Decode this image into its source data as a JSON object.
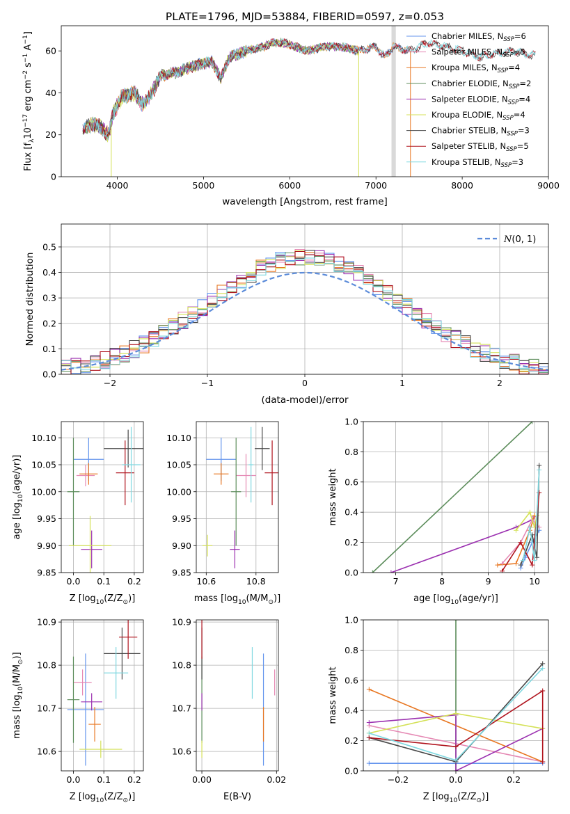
{
  "figure_title": "PLATE=1796, MJD=53884, FIBERID=0597, z=0.053",
  "colors": {
    "Chabrier MILES": "#6495ED",
    "Salpeter MILES": "#E589B4",
    "Kroupa MILES": "#E87722",
    "Chabrier ELODIE": "#5B8C5A",
    "Salpeter ELODIE": "#9B30B0",
    "Kroupa ELODIE": "#D4E157",
    "Chabrier STELIB": "#474747",
    "Salpeter STELIB": "#B0141E",
    "Kroupa STELIB": "#7FD8E0"
  },
  "chart_data": [
    {
      "id": "spectrum",
      "type": "line",
      "ylabel": "Flux [f$_\\lambda$10$^{-17}$ erg cm$^{-2}$ s$^{-1}$ A$^{-1}$]",
      "ylabel_parts": [
        "Flux [f",
        "λ",
        "10",
        "−17",
        " erg cm",
        "−2",
        " s",
        "−1",
        " A",
        "−1",
        "]"
      ],
      "xlabel": "wavelength [Angstrom, rest frame]",
      "xlim": [
        3350,
        9000
      ],
      "ylim": [
        0,
        72
      ],
      "xticks": [
        4000,
        5000,
        6000,
        7000,
        8000,
        9000
      ],
      "yticks": [
        0,
        20,
        40,
        60
      ],
      "legend": [
        {
          "model": "Chabrier MILES",
          "n": "6"
        },
        {
          "model": "Salpeter MILES",
          "n": "5"
        },
        {
          "model": "Kroupa MILES",
          "n": "4"
        },
        {
          "model": "Chabrier ELODIE",
          "n": "2"
        },
        {
          "model": "Salpeter ELODIE",
          "n": "4"
        },
        {
          "model": "Kroupa ELODIE",
          "n": "4"
        },
        {
          "model": "Chabrier STELIB",
          "n": "3"
        },
        {
          "model": "Salpeter STELIB",
          "n": "5"
        },
        {
          "model": "Kroupa STELIB",
          "n": "3"
        }
      ],
      "legend_prefix": "N",
      "legend_sub": "SSP",
      "legend_position": "right",
      "continuum": [
        [
          3600,
          22
        ],
        [
          3700,
          25
        ],
        [
          3800,
          24
        ],
        [
          3900,
          20
        ],
        [
          3950,
          30
        ],
        [
          4050,
          38
        ],
        [
          4200,
          40
        ],
        [
          4300,
          34
        ],
        [
          4400,
          40
        ],
        [
          4500,
          48
        ],
        [
          4700,
          50
        ],
        [
          4900,
          53
        ],
        [
          5100,
          55
        ],
        [
          5200,
          47
        ],
        [
          5300,
          57
        ],
        [
          5500,
          60
        ],
        [
          5700,
          62
        ],
        [
          5800,
          64
        ],
        [
          5900,
          64
        ],
        [
          6000,
          63
        ],
        [
          6200,
          60
        ],
        [
          6400,
          62
        ],
        [
          6600,
          62
        ],
        [
          6800,
          60
        ],
        [
          7000,
          62
        ],
        [
          7100,
          57
        ],
        [
          7200,
          62
        ],
        [
          7400,
          60
        ],
        [
          7600,
          64
        ],
        [
          7800,
          62
        ],
        [
          8000,
          60
        ],
        [
          8200,
          57
        ],
        [
          8400,
          59
        ],
        [
          8600,
          60
        ],
        [
          8800,
          58
        ]
      ],
      "series_ranges": {
        "Chabrier MILES": [
          3600,
          7400
        ],
        "Salpeter MILES": [
          3600,
          7400
        ],
        "Kroupa MILES": [
          3600,
          7400
        ],
        "Chabrier ELODIE": [
          3600,
          6800
        ],
        "Salpeter ELODIE": [
          3600,
          6800
        ],
        "Kroupa ELODIE": [
          3600,
          6800
        ],
        "Chabrier STELIB": [
          3600,
          8850
        ],
        "Salpeter STELIB": [
          3600,
          8850
        ],
        "Kroupa STELIB": [
          3600,
          8850
        ]
      },
      "drops": [
        {
          "x": 3930,
          "model": "Kroupa ELODIE"
        },
        {
          "x": 6800,
          "model": "Kroupa ELODIE"
        },
        {
          "x": 7400,
          "model": "Kroupa MILES"
        }
      ],
      "masked_band": [
        7180,
        7230
      ]
    },
    {
      "id": "residuals",
      "type": "step",
      "xlabel": "(data-model)/error",
      "ylabel": "Normed distribution",
      "xlim": [
        -2.5,
        2.5
      ],
      "ylim": [
        0,
        0.59
      ],
      "xticks": [
        -2,
        -1,
        0,
        1,
        2
      ],
      "yticks": [
        0.0,
        0.1,
        0.2,
        0.3,
        0.4,
        0.5
      ],
      "grid": true,
      "legend": [
        {
          "label_prefix": "N",
          "label_args": "(0, 1)",
          "color": "#5B8BD9"
        }
      ],
      "legend_position": "top-right",
      "normal_curve": {
        "mu": 0,
        "sigma": 1
      },
      "bin_width": 0.1
    },
    {
      "id": "age_vs_Z",
      "type": "scatter",
      "xlabel_parts": [
        "Z [log",
        "10",
        "(Z/Z",
        "⊙",
        ")]"
      ],
      "ylabel_parts": [
        "age  [log",
        "10",
        "(age/yr)]"
      ],
      "xlim": [
        -0.04,
        0.23
      ],
      "ylim": [
        9.85,
        10.13
      ],
      "xticks": [
        0.0,
        0.1,
        0.2
      ],
      "yticks": [
        9.85,
        9.9,
        9.95,
        10.0,
        10.05,
        10.1
      ],
      "grid": true,
      "points": [
        {
          "model": "Chabrier MILES",
          "x": 0.05,
          "y": 10.06,
          "xerr": 0.05,
          "yerr": 0.04
        },
        {
          "model": "Salpeter MILES",
          "x": 0.04,
          "y": 10.03,
          "xerr": 0.03,
          "yerr": 0.02
        },
        {
          "model": "Kroupa MILES",
          "x": 0.05,
          "y": 10.033,
          "xerr": 0.03,
          "yerr": 0.02
        },
        {
          "model": "Chabrier ELODIE",
          "x": 0.0,
          "y": 10.0,
          "xerr": 0.02,
          "yerr": 0.1
        },
        {
          "model": "Salpeter ELODIE",
          "x": 0.06,
          "y": 9.893,
          "xerr": 0.035,
          "yerr": 0.035
        },
        {
          "model": "Kroupa ELODIE",
          "x": 0.055,
          "y": 9.9,
          "xerr": 0.07,
          "yerr": 0.055
        },
        {
          "model": "Chabrier STELIB",
          "x": 0.18,
          "y": 10.08,
          "xerr": 0.08,
          "yerr": 0.035
        },
        {
          "model": "Salpeter STELIB",
          "x": 0.17,
          "y": 10.035,
          "xerr": 0.03,
          "yerr": 0.06
        },
        {
          "model": "Kroupa STELIB",
          "x": 0.19,
          "y": 10.05,
          "xerr": 0.03,
          "yerr": 0.07
        }
      ]
    },
    {
      "id": "age_vs_mass",
      "type": "scatter",
      "xlabel_parts": [
        "mass [log",
        "10",
        "(M/M",
        "⊙",
        ")]"
      ],
      "xlim": [
        10.56,
        10.89
      ],
      "ylim": [
        9.85,
        10.13
      ],
      "xticks": [
        10.6,
        10.8
      ],
      "yticks": [
        9.85,
        9.9,
        9.95,
        10.0,
        10.05,
        10.1
      ],
      "grid": true,
      "points": [
        {
          "model": "Chabrier MILES",
          "x": 10.66,
          "y": 10.06,
          "xerr": 0.06,
          "yerr": 0.04
        },
        {
          "model": "Salpeter MILES",
          "x": 10.76,
          "y": 10.03,
          "xerr": 0.04,
          "yerr": 0.04
        },
        {
          "model": "Kroupa MILES",
          "x": 10.66,
          "y": 10.033,
          "xerr": 0.03,
          "yerr": 0.02
        },
        {
          "model": "Chabrier ELODIE",
          "x": 10.72,
          "y": 10.0,
          "xerr": 0.02,
          "yerr": 0.1
        },
        {
          "model": "Salpeter ELODIE",
          "x": 10.715,
          "y": 9.893,
          "xerr": 0.02,
          "yerr": 0.035
        },
        {
          "model": "Kroupa ELODIE",
          "x": 10.605,
          "y": 9.9,
          "xerr": 0.02,
          "yerr": 0.02
        },
        {
          "model": "Chabrier STELIB",
          "x": 10.825,
          "y": 10.08,
          "xerr": 0.03,
          "yerr": 0.04
        },
        {
          "model": "Salpeter STELIB",
          "x": 10.865,
          "y": 10.035,
          "xerr": 0.03,
          "yerr": 0.06
        },
        {
          "model": "Kroupa STELIB",
          "x": 10.78,
          "y": 10.05,
          "xerr": 0.01,
          "yerr": 0.07
        }
      ]
    },
    {
      "id": "weight_vs_age",
      "type": "line",
      "xlabel_parts": [
        "age  [log",
        "10",
        "(age/yr)]"
      ],
      "ylabel": "mass weight",
      "xlim": [
        6.3,
        10.3
      ],
      "ylim": [
        0,
        1
      ],
      "xticks": [
        7,
        8,
        9,
        10
      ],
      "yticks": [
        0.0,
        0.2,
        0.4,
        0.6,
        0.8,
        1.0
      ],
      "grid": true,
      "series": [
        {
          "model": "Chabrier ELODIE",
          "x": [
            6.5,
            9.95
          ],
          "y": [
            0.0,
            1.0
          ]
        },
        {
          "model": "Salpeter ELODIE",
          "x": [
            6.9,
            9.6,
            9.95,
            10.0
          ],
          "y": [
            0.0,
            0.3,
            0.35,
            0.37
          ]
        },
        {
          "model": "Kroupa MILES",
          "x": [
            9.2,
            9.6,
            9.9,
            10.0
          ],
          "y": [
            0.05,
            0.06,
            0.28,
            0.38
          ]
        },
        {
          "model": "Salpeter MILES",
          "x": [
            9.3,
            9.7,
            9.95,
            10.1
          ],
          "y": [
            0.06,
            0.2,
            0.35,
            0.3
          ]
        },
        {
          "model": "Chabrier MILES",
          "x": [
            9.7,
            9.8,
            9.95,
            10.1
          ],
          "y": [
            0.03,
            0.1,
            0.2,
            0.28
          ]
        },
        {
          "model": "Kroupa ELODIE",
          "x": [
            9.6,
            9.9,
            10.0,
            10.05
          ],
          "y": [
            0.28,
            0.4,
            0.3,
            0.38
          ]
        },
        {
          "model": "Chabrier STELIB",
          "x": [
            9.7,
            9.95,
            10.05,
            10.1
          ],
          "y": [
            0.05,
            0.25,
            0.1,
            0.71
          ]
        },
        {
          "model": "Salpeter STELIB",
          "x": [
            9.3,
            9.7,
            9.95,
            10.1
          ],
          "y": [
            0.01,
            0.2,
            0.05,
            0.53
          ]
        },
        {
          "model": "Kroupa STELIB",
          "x": [
            9.75,
            9.9,
            10.0,
            10.1
          ],
          "y": [
            0.08,
            0.3,
            0.08,
            0.68
          ]
        }
      ]
    },
    {
      "id": "mass_vs_Z",
      "type": "scatter",
      "xlabel_parts": [
        "Z [log",
        "10",
        "(Z/Z",
        "⊙",
        ")]"
      ],
      "ylabel_parts": [
        "mass [log",
        "10",
        "(M/M",
        "⊙",
        ")]"
      ],
      "xlim": [
        -0.04,
        0.23
      ],
      "ylim": [
        10.555,
        10.905
      ],
      "xticks": [
        0.0,
        0.1,
        0.2
      ],
      "yticks": [
        10.6,
        10.7,
        10.8,
        10.9
      ],
      "grid": true,
      "points": [
        {
          "model": "Chabrier MILES",
          "x": 0.04,
          "y": 10.697,
          "xerr": 0.06,
          "yerr": 0.13
        },
        {
          "model": "Salpeter MILES",
          "x": 0.03,
          "y": 10.76,
          "xerr": 0.03,
          "yerr": 0.03
        },
        {
          "model": "Kroupa MILES",
          "x": 0.07,
          "y": 10.663,
          "xerr": 0.02,
          "yerr": 0.04
        },
        {
          "model": "Chabrier ELODIE",
          "x": 0.0,
          "y": 10.72,
          "xerr": 0.02,
          "yerr": 0.1
        },
        {
          "model": "Salpeter ELODIE",
          "x": 0.06,
          "y": 10.715,
          "xerr": 0.035,
          "yerr": 0.02
        },
        {
          "model": "Kroupa ELODIE",
          "x": 0.09,
          "y": 10.605,
          "xerr": 0.07,
          "yerr": 0.02
        },
        {
          "model": "Chabrier STELIB",
          "x": 0.16,
          "y": 10.827,
          "xerr": 0.06,
          "yerr": 0.06
        },
        {
          "model": "Salpeter STELIB",
          "x": 0.18,
          "y": 10.865,
          "xerr": 0.03,
          "yerr": 0.05
        },
        {
          "model": "Kroupa STELIB",
          "x": 0.14,
          "y": 10.782,
          "xerr": 0.04,
          "yerr": 0.06
        }
      ]
    },
    {
      "id": "mass_vs_EBV",
      "type": "scatter",
      "xlabel": "E(B-V)",
      "xlim": [
        -0.0015,
        0.0205
      ],
      "ylim": [
        10.555,
        10.905
      ],
      "xticks": [
        0.0,
        0.02
      ],
      "yticks": [
        10.6,
        10.7,
        10.8,
        10.9
      ],
      "grid": true,
      "points": [
        {
          "model": "Chabrier MILES",
          "x": 0.0165,
          "y": 10.697,
          "xerr": 0.0,
          "yerr": 0.13
        },
        {
          "model": "Salpeter MILES",
          "x": 0.0195,
          "y": 10.76,
          "xerr": 0.0,
          "yerr": 0.03
        },
        {
          "model": "Kroupa MILES",
          "x": 0.0165,
          "y": 10.663,
          "xerr": 0.0,
          "yerr": 0.04
        },
        {
          "model": "Chabrier ELODIE",
          "x": 0.0,
          "y": 10.72,
          "xerr": 0.0,
          "yerr": 0.1
        },
        {
          "model": "Salpeter ELODIE",
          "x": 0.0,
          "y": 10.715,
          "xerr": 0.0,
          "yerr": 0.02
        },
        {
          "model": "Kroupa ELODIE",
          "x": 0.0,
          "y": 10.605,
          "xerr": 0.0,
          "yerr": 0.02
        },
        {
          "model": "Chabrier STELIB",
          "x": 0.0,
          "y": 10.827,
          "xerr": 0.0,
          "yerr": 0.06
        },
        {
          "model": "Salpeter STELIB",
          "x": 0.0,
          "y": 10.865,
          "xerr": 0.0,
          "yerr": 0.05
        },
        {
          "model": "Kroupa STELIB",
          "x": 0.0135,
          "y": 10.782,
          "xerr": 0.0,
          "yerr": 0.06
        }
      ]
    },
    {
      "id": "weight_vs_Z",
      "type": "line",
      "xlabel_parts": [
        "Z [log",
        "10",
        "(Z/Z",
        "⊙",
        ")]"
      ],
      "ylabel": "mass weight",
      "xlim": [
        -0.32,
        0.32
      ],
      "ylim": [
        0,
        1
      ],
      "xticks": [
        -0.2,
        0.0,
        0.2
      ],
      "yticks": [
        0.0,
        0.2,
        0.4,
        0.6,
        0.8,
        1.0
      ],
      "grid": true,
      "series": [
        {
          "model": "Chabrier ELODIE",
          "x": [
            0.0,
            0.0
          ],
          "y": [
            0.0,
            1.0
          ]
        },
        {
          "model": "Chabrier MILES",
          "x": [
            -0.3,
            0.0,
            0.3
          ],
          "y": [
            0.05,
            0.05,
            0.05
          ]
        },
        {
          "model": "Salpeter MILES",
          "x": [
            -0.3,
            0.0,
            0.3
          ],
          "y": [
            0.3,
            0.18,
            0.06
          ]
        },
        {
          "model": "Kroupa MILES",
          "x": [
            -0.3,
            0.3
          ],
          "y": [
            0.54,
            0.06
          ]
        },
        {
          "model": "Salpeter ELODIE",
          "x": [
            -0.3,
            0.0,
            0.0,
            0.3
          ],
          "y": [
            0.32,
            0.37,
            0.0,
            0.28
          ]
        },
        {
          "model": "Kroupa ELODIE",
          "x": [
            -0.3,
            0.0,
            0.3
          ],
          "y": [
            0.25,
            0.38,
            0.28
          ]
        },
        {
          "model": "Chabrier STELIB",
          "x": [
            -0.3,
            0.0,
            0.3
          ],
          "y": [
            0.22,
            0.06,
            0.71
          ]
        },
        {
          "model": "Salpeter STELIB",
          "x": [
            -0.3,
            0.0,
            0.3,
            0.3
          ],
          "y": [
            0.22,
            0.16,
            0.53,
            0.06
          ]
        },
        {
          "model": "Kroupa STELIB",
          "x": [
            -0.3,
            0.0,
            0.3
          ],
          "y": [
            0.25,
            0.07,
            0.68
          ]
        }
      ]
    }
  ]
}
